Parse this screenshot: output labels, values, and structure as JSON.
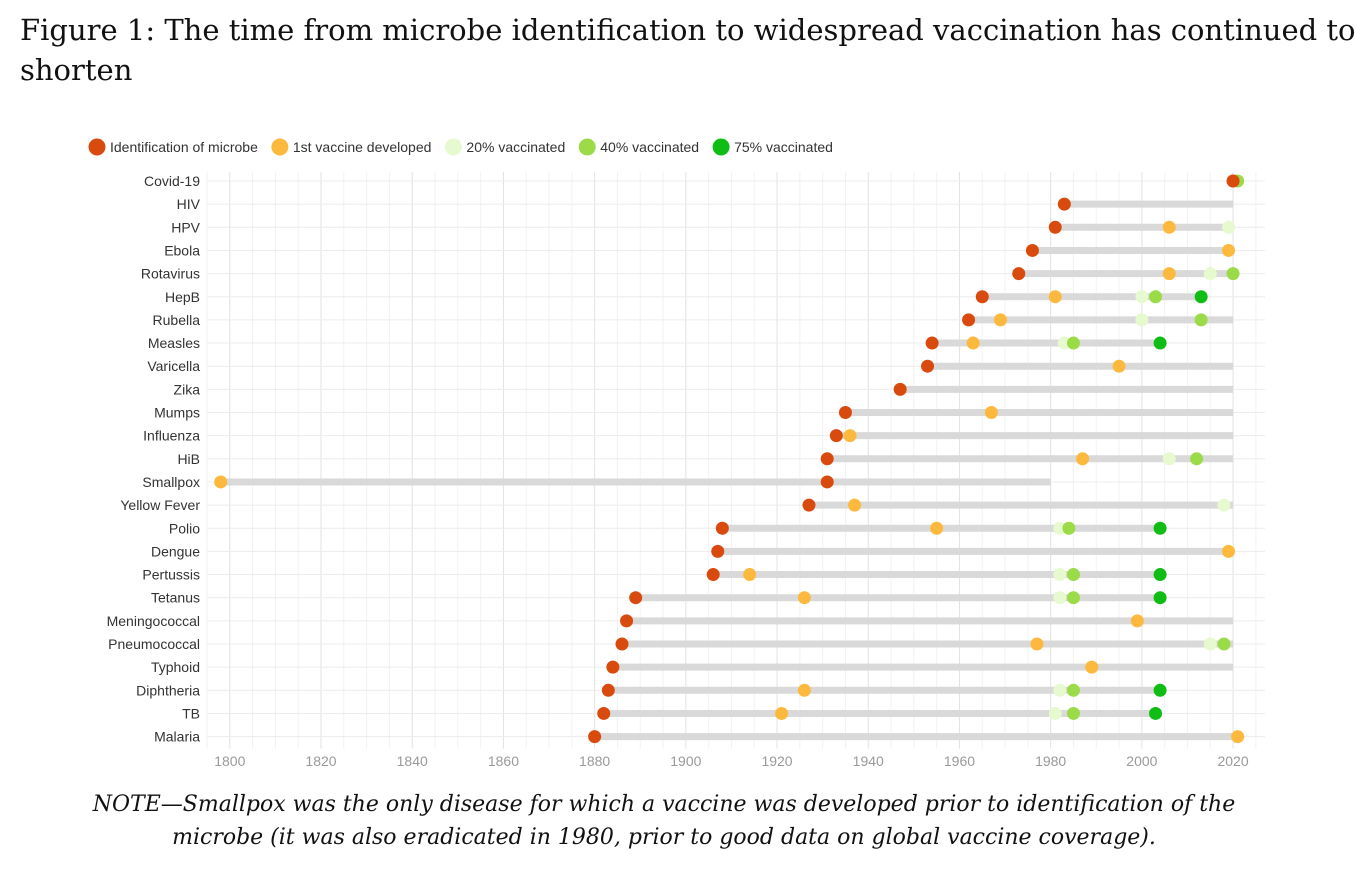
{
  "figure": {
    "title_line1": "Figure 1:  The time from microbe identification to widespread vaccination has continued to",
    "title_line2": "shorten",
    "note_line1": "NOTE—Smallpox was the only disease for which a vaccine was developed prior to identification of the",
    "note_line2": "microbe (it was also eradicated in 1980, prior to good data on global vaccine coverage)."
  },
  "chart_data": {
    "type": "scatter",
    "title": "",
    "xlabel": "",
    "ylabel": "",
    "xlim": [
      1795,
      2027
    ],
    "x_ticks": [
      1800,
      1820,
      1840,
      1860,
      1880,
      1900,
      1920,
      1940,
      1960,
      1980,
      2000,
      2020
    ],
    "grid": true,
    "legend_position": "top-left",
    "series": [
      {
        "key": "identification",
        "name": "Identification of microbe",
        "color": "#D94A0F"
      },
      {
        "key": "vaccine",
        "name": "1st vaccine developed",
        "color": "#FDB93D"
      },
      {
        "key": "v20",
        "name": "20% vaccinated",
        "color": "#E6F9CF"
      },
      {
        "key": "v40",
        "name": "40% vaccinated",
        "color": "#9BDB47"
      },
      {
        "key": "v75",
        "name": "75% vaccinated",
        "color": "#0FBD14"
      }
    ],
    "diseases": [
      {
        "name": "Covid-19",
        "line_end": 2022,
        "identification": 2020,
        "vaccine": 2020,
        "v20": null,
        "v40": 2021,
        "v75": null
      },
      {
        "name": "HIV",
        "line_end": 2020,
        "identification": 1983,
        "vaccine": null,
        "v20": null,
        "v40": null,
        "v75": null
      },
      {
        "name": "HPV",
        "line_end": 2020,
        "identification": 1981,
        "vaccine": 2006,
        "v20": 2019,
        "v40": null,
        "v75": null
      },
      {
        "name": "Ebola",
        "line_end": 2020,
        "identification": 1976,
        "vaccine": 2019,
        "v20": null,
        "v40": null,
        "v75": null
      },
      {
        "name": "Rotavirus",
        "line_end": 2020,
        "identification": 1973,
        "vaccine": 2006,
        "v20": 2015,
        "v40": 2020,
        "v75": null
      },
      {
        "name": "HepB",
        "line_end": 2013,
        "identification": 1965,
        "vaccine": 1981,
        "v20": 2000,
        "v40": 2003,
        "v75": 2013
      },
      {
        "name": "Rubella",
        "line_end": 2020,
        "identification": 1962,
        "vaccine": 1969,
        "v20": 2000,
        "v40": 2013,
        "v75": null
      },
      {
        "name": "Measles",
        "line_end": 2004,
        "identification": 1954,
        "vaccine": 1963,
        "v20": 1983,
        "v40": 1985,
        "v75": 2004
      },
      {
        "name": "Varicella",
        "line_end": 2020,
        "identification": 1953,
        "vaccine": 1995,
        "v20": null,
        "v40": null,
        "v75": null
      },
      {
        "name": "Zika",
        "line_end": 2020,
        "identification": 1947,
        "vaccine": null,
        "v20": null,
        "v40": null,
        "v75": null
      },
      {
        "name": "Mumps",
        "line_end": 2020,
        "identification": 1935,
        "vaccine": 1967,
        "v20": null,
        "v40": null,
        "v75": null
      },
      {
        "name": "Influenza",
        "line_end": 2020,
        "identification": 1933,
        "vaccine": 1936,
        "v20": null,
        "v40": null,
        "v75": null
      },
      {
        "name": "HiB",
        "line_end": 2020,
        "identification": 1931,
        "vaccine": 1987,
        "v20": 2006,
        "v40": 2012,
        "v75": null
      },
      {
        "name": "Smallpox",
        "line_end": 1980,
        "identification": 1931,
        "vaccine": 1798,
        "v20": null,
        "v40": null,
        "v75": null
      },
      {
        "name": "Yellow Fever",
        "line_end": 2020,
        "identification": 1927,
        "vaccine": 1937,
        "v20": 2018,
        "v40": null,
        "v75": null
      },
      {
        "name": "Polio",
        "line_end": 2004,
        "identification": 1908,
        "vaccine": 1955,
        "v20": 1982,
        "v40": 1984,
        "v75": 2004
      },
      {
        "name": "Dengue",
        "line_end": 2019,
        "identification": 1907,
        "vaccine": 2019,
        "v20": null,
        "v40": null,
        "v75": null
      },
      {
        "name": "Pertussis",
        "line_end": 2004,
        "identification": 1906,
        "vaccine": 1914,
        "v20": 1982,
        "v40": 1985,
        "v75": 2004
      },
      {
        "name": "Tetanus",
        "line_end": 2004,
        "identification": 1889,
        "vaccine": 1926,
        "v20": 1982,
        "v40": 1985,
        "v75": 2004
      },
      {
        "name": "Meningococcal",
        "line_end": 2020,
        "identification": 1887,
        "vaccine": 1999,
        "v20": null,
        "v40": null,
        "v75": null
      },
      {
        "name": "Pneumococcal",
        "line_end": 2020,
        "identification": 1886,
        "vaccine": 1977,
        "v20": 2015,
        "v40": 2018,
        "v75": null
      },
      {
        "name": "Typhoid",
        "line_end": 2020,
        "identification": 1884,
        "vaccine": 1989,
        "v20": null,
        "v40": null,
        "v75": null
      },
      {
        "name": "Diphtheria",
        "line_end": 2004,
        "identification": 1883,
        "vaccine": 1926,
        "v20": 1982,
        "v40": 1985,
        "v75": 2004
      },
      {
        "name": "TB",
        "line_end": 2003,
        "identification": 1882,
        "vaccine": 1921,
        "v20": 1981,
        "v40": 1985,
        "v75": 2003
      },
      {
        "name": "Malaria",
        "line_end": 2021,
        "identification": 1880,
        "vaccine": 2021,
        "v20": null,
        "v40": null,
        "v75": null
      }
    ]
  }
}
